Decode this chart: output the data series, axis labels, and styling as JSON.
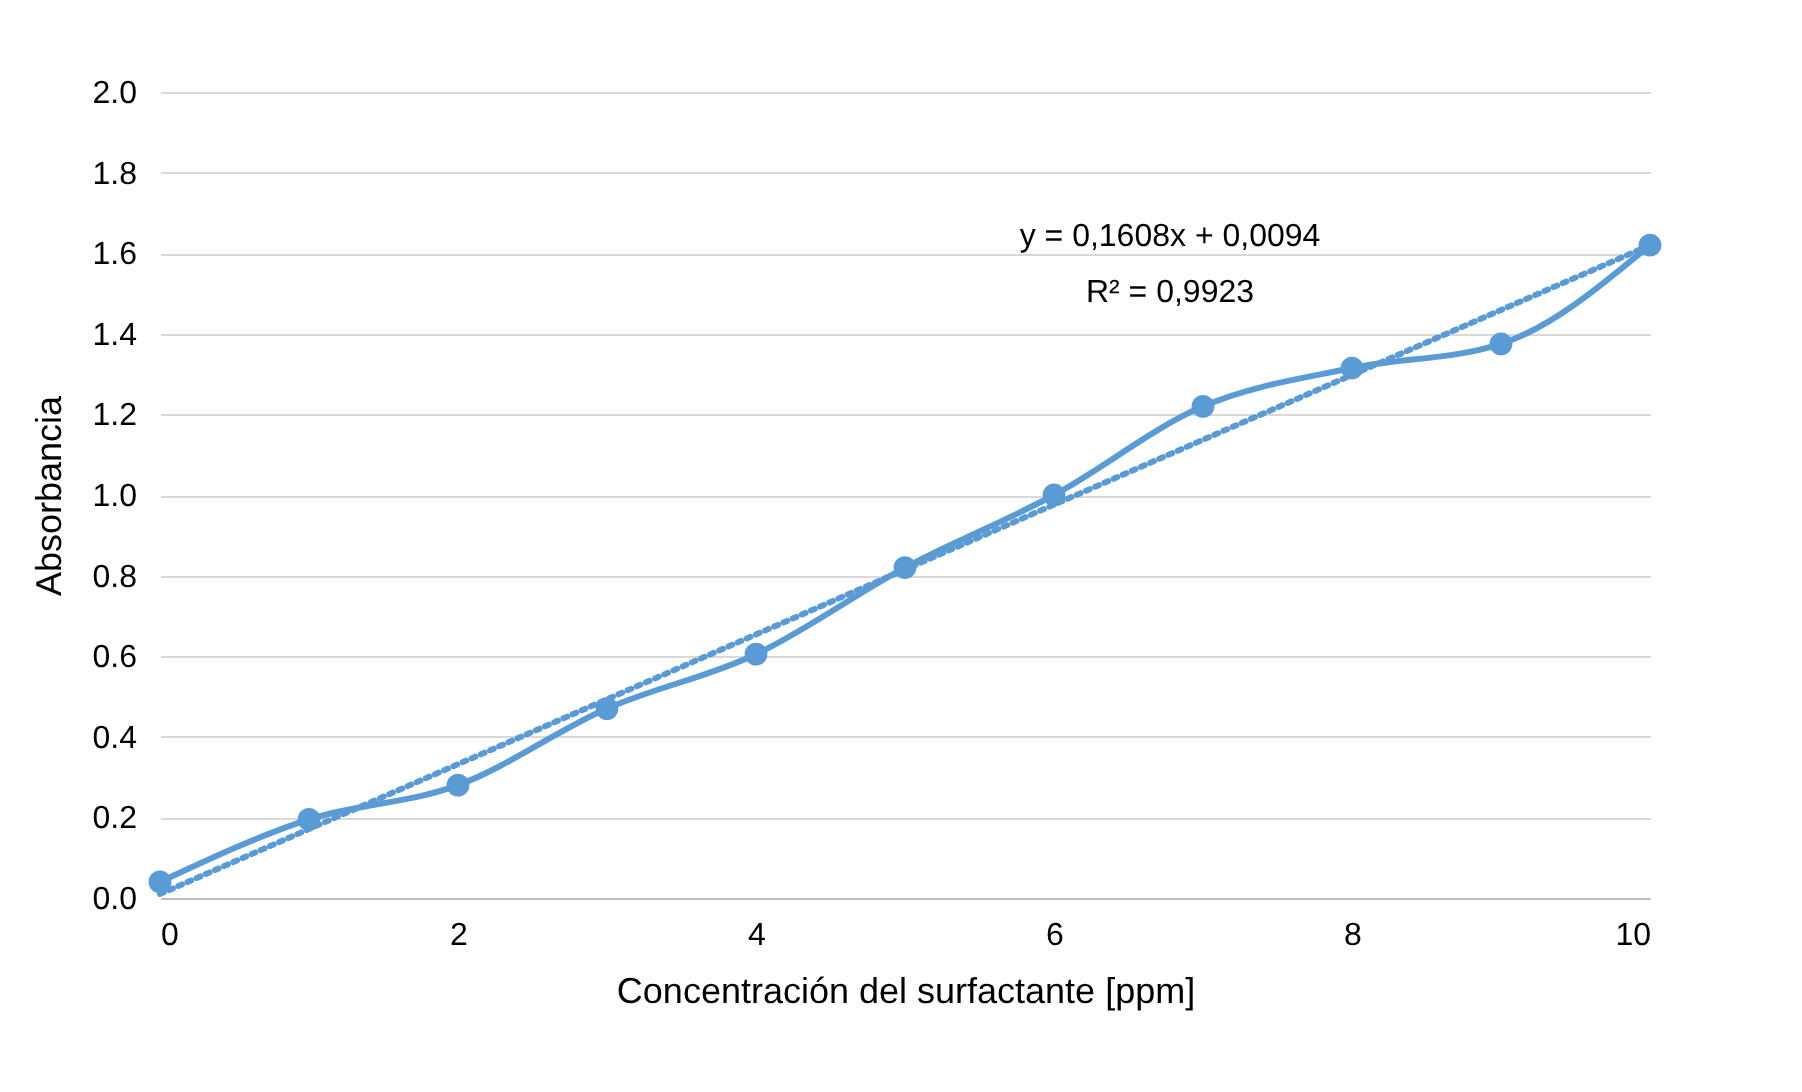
{
  "chart_data": {
    "type": "line",
    "xlabel": "Concentración del surfactante [ppm]",
    "ylabel": "Absorbancia",
    "x": [
      0,
      1,
      2,
      3,
      4,
      5,
      6,
      7,
      8,
      9,
      10
    ],
    "series": [
      {
        "color": "#5b9bd5",
        "values": [
          0.04,
          0.195,
          0.28,
          0.47,
          0.605,
          0.82,
          1.0,
          1.22,
          1.315,
          1.375,
          1.62
        ],
        "marker": "circle",
        "line_style": "solid"
      },
      {
        "type": "line",
        "color": "#5b9bd5",
        "x": [
          0,
          10
        ],
        "values": [
          0.01,
          1.62
        ],
        "marker": "none",
        "line_style": "dotted"
      }
    ],
    "xlim": [
      0,
      10
    ],
    "xticks": [
      0,
      2,
      4,
      6,
      8,
      10
    ],
    "ylim": [
      0,
      2
    ],
    "yticks": [
      {
        "value": 0,
        "label": "0.0"
      },
      {
        "value": 0.2,
        "label": "0.2"
      },
      {
        "value": 0.4,
        "label": "0.4"
      },
      {
        "value": 0.6,
        "label": "0.6"
      },
      {
        "value": 0.8,
        "label": "0.8"
      },
      {
        "value": 1,
        "label": "1.0"
      },
      {
        "value": 1.2,
        "label": "1.2"
      },
      {
        "value": 1.4,
        "label": "1.4"
      },
      {
        "value": 1.6,
        "label": "1.6"
      },
      {
        "value": 1.8,
        "label": "1.8"
      },
      {
        "value": 2,
        "label": "2.0"
      }
    ],
    "grid": "y",
    "annotations": [
      "y = 0,1608x + 0,0094",
      "R² = 0,9923"
    ]
  }
}
